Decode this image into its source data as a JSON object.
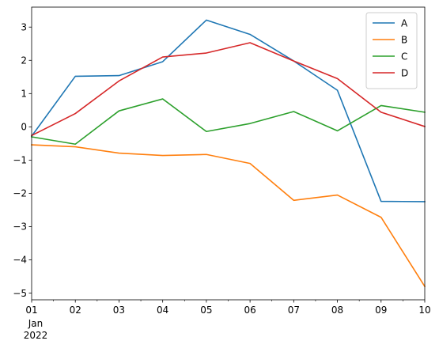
{
  "chart_data": {
    "type": "line",
    "title": "",
    "xlabel": "",
    "ylabel": "",
    "x": [
      "2022-01-01",
      "2022-01-02",
      "2022-01-03",
      "2022-01-04",
      "2022-01-05",
      "2022-01-06",
      "2022-01-07",
      "2022-01-08",
      "2022-01-09",
      "2022-01-10"
    ],
    "x_tick_labels": [
      "01",
      "02",
      "03",
      "04",
      "05",
      "06",
      "07",
      "08",
      "09",
      "10"
    ],
    "x_tick_sublabels": [
      "Jan",
      "2022"
    ],
    "xlim": [
      "2022-01-01",
      "2022-01-10"
    ],
    "ylim": [
      -5.2,
      3.6
    ],
    "y_ticks": [
      -5,
      -4,
      -3,
      -2,
      -1,
      0,
      1,
      2,
      3
    ],
    "y_tick_labels": [
      "−5",
      "−4",
      "−3",
      "−2",
      "−1",
      "0",
      "1",
      "2",
      "3"
    ],
    "grid": false,
    "legend": "top-right",
    "series": [
      {
        "name": "A",
        "color": "#1f77b4",
        "values": [
          -0.28,
          1.52,
          1.54,
          1.96,
          3.21,
          2.78,
          1.98,
          1.1,
          -2.24,
          -2.25
        ]
      },
      {
        "name": "B",
        "color": "#ff7f0e",
        "values": [
          -0.54,
          -0.6,
          -0.79,
          -0.86,
          -0.83,
          -1.1,
          -2.21,
          -2.05,
          -2.72,
          -4.8
        ]
      },
      {
        "name": "C",
        "color": "#2ca02c",
        "values": [
          -0.3,
          -0.52,
          0.48,
          0.84,
          -0.14,
          0.1,
          0.46,
          -0.12,
          0.64,
          0.44
        ]
      },
      {
        "name": "D",
        "color": "#d62728",
        "values": [
          -0.26,
          0.4,
          1.38,
          2.1,
          2.22,
          2.53,
          1.98,
          1.45,
          0.44,
          0.01
        ]
      }
    ]
  }
}
